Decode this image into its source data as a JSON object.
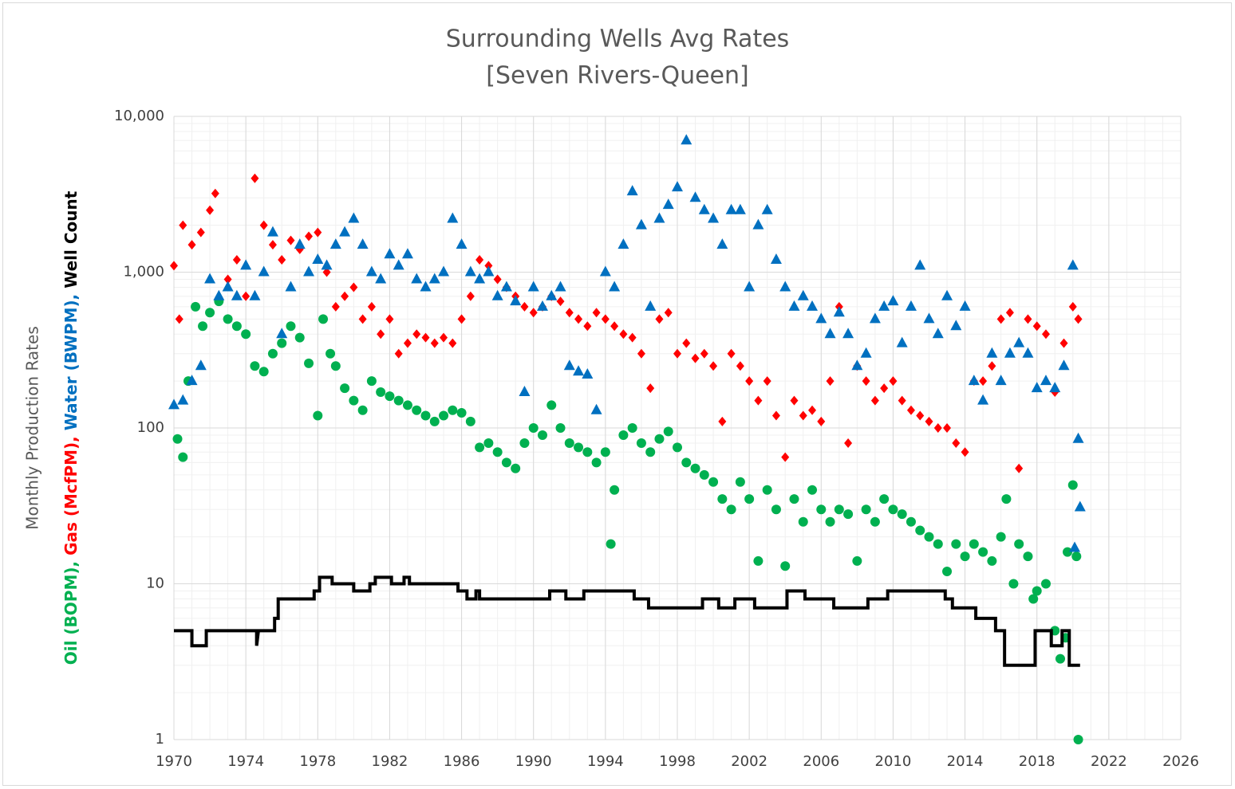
{
  "chart_data": {
    "type": "scatter",
    "title": "Surrounding Wells Avg Rates",
    "subtitle": "[Seven Rivers-Queen]",
    "ylabel": "Monthly Production Rates",
    "xlim": [
      1970,
      2026
    ],
    "xticks": [
      1970,
      1974,
      1978,
      1982,
      1986,
      1990,
      1994,
      1998,
      2002,
      2006,
      2010,
      2014,
      2018,
      2022,
      2026
    ],
    "ylim": [
      1,
      10000
    ],
    "yticks": [
      1,
      10,
      100,
      {
        "value": 1000,
        "label": "1,000"
      },
      {
        "value": 10000,
        "label": "10,000"
      }
    ],
    "log_y": true,
    "grid": true,
    "minor_grid": true,
    "series": [
      {
        "name": "Oil (BOPM),",
        "color": "#00b050",
        "marker": "circle",
        "x": [
          1970.2,
          1970.5,
          1970.8,
          1971.2,
          1971.6,
          1972,
          1972.5,
          1973,
          1973.5,
          1974,
          1974.5,
          1975,
          1975.5,
          1976,
          1976.5,
          1977,
          1977.5,
          1978,
          1978.3,
          1978.7,
          1979,
          1979.5,
          1980,
          1980.5,
          1981,
          1981.5,
          1982,
          1982.5,
          1983,
          1983.5,
          1984,
          1984.5,
          1985,
          1985.5,
          1986,
          1986.5,
          1987,
          1987.5,
          1988,
          1988.5,
          1989,
          1989.5,
          1990,
          1990.5,
          1991,
          1991.5,
          1992,
          1992.5,
          1993,
          1993.5,
          1994,
          1994.3,
          1994.5,
          1995,
          1995.5,
          1996,
          1996.5,
          1997,
          1997.5,
          1998,
          1998.5,
          1999,
          1999.5,
          2000,
          2000.5,
          2001,
          2001.5,
          2002,
          2002.5,
          2003,
          2003.5,
          2004,
          2004.5,
          2005,
          2005.5,
          2006,
          2006.5,
          2007,
          2007.5,
          2008,
          2008.5,
          2009,
          2009.5,
          2010,
          2010.5,
          2011,
          2011.5,
          2012,
          2012.5,
          2013,
          2013.5,
          2014,
          2014.5,
          2015,
          2015.5,
          2016,
          2016.3,
          2016.7,
          2017,
          2017.5,
          2017.8,
          2018,
          2018.5,
          2019,
          2019.3,
          2019.6,
          2019.7,
          2020,
          2020.2,
          2020.3
        ],
        "values": [
          85,
          65,
          200,
          600,
          450,
          550,
          650,
          500,
          450,
          400,
          250,
          230,
          300,
          350,
          450,
          380,
          260,
          120,
          500,
          300,
          250,
          180,
          150,
          130,
          200,
          170,
          160,
          150,
          140,
          130,
          120,
          110,
          120,
          130,
          125,
          110,
          75,
          80,
          70,
          60,
          55,
          80,
          100,
          90,
          140,
          100,
          80,
          75,
          70,
          60,
          70,
          18,
          40,
          90,
          100,
          80,
          70,
          85,
          95,
          75,
          60,
          55,
          50,
          45,
          35,
          30,
          45,
          35,
          14,
          40,
          30,
          13,
          35,
          25,
          40,
          30,
          25,
          30,
          28,
          14,
          30,
          25,
          35,
          30,
          28,
          25,
          22,
          20,
          18,
          12,
          18,
          15,
          18,
          16,
          14,
          20,
          35,
          10,
          18,
          15,
          8,
          9,
          10,
          5,
          3.3,
          4.5,
          16,
          43,
          15,
          1
        ]
      },
      {
        "name": "Gas (McfPM),",
        "color": "#ff0000",
        "marker": "diamond",
        "x": [
          1970,
          1970.3,
          1970.5,
          1971,
          1971.5,
          1972,
          1972.3,
          1973,
          1973.5,
          1974,
          1974.5,
          1975,
          1975.5,
          1976,
          1976.5,
          1977,
          1977.5,
          1978,
          1978.5,
          1979,
          1979.5,
          1980,
          1980.5,
          1981,
          1981.5,
          1982,
          1982.5,
          1983,
          1983.5,
          1984,
          1984.5,
          1985,
          1985.5,
          1986,
          1986.5,
          1987,
          1987.5,
          1988,
          1988.5,
          1989,
          1989.5,
          1990,
          1990.5,
          1991,
          1991.5,
          1992,
          1992.5,
          1993,
          1993.5,
          1994,
          1994.5,
          1995,
          1995.5,
          1996,
          1996.5,
          1997,
          1997.5,
          1998,
          1998.5,
          1999,
          1999.5,
          2000,
          2000.5,
          2001,
          2001.5,
          2002,
          2002.5,
          2003,
          2003.5,
          2004,
          2004.5,
          2005,
          2005.5,
          2006,
          2006.5,
          2007,
          2007.5,
          2008,
          2008.5,
          2009,
          2009.5,
          2010,
          2010.5,
          2011,
          2011.5,
          2012,
          2012.5,
          2013,
          2013.5,
          2014,
          2014.5,
          2015,
          2015.5,
          2016,
          2016.5,
          2017,
          2017.5,
          2018,
          2018.5,
          2019,
          2019.5,
          2020,
          2020.3
        ],
        "values": [
          1100,
          500,
          2000,
          1500,
          1800,
          2500,
          3200,
          900,
          1200,
          700,
          4000,
          2000,
          1500,
          1200,
          1600,
          1400,
          1700,
          1800,
          1000,
          600,
          700,
          800,
          500,
          600,
          400,
          500,
          300,
          350,
          400,
          380,
          350,
          380,
          350,
          500,
          700,
          1200,
          1100,
          900,
          800,
          700,
          600,
          550,
          600,
          700,
          650,
          550,
          500,
          450,
          550,
          500,
          450,
          400,
          380,
          300,
          180,
          500,
          550,
          300,
          350,
          280,
          300,
          250,
          110,
          300,
          250,
          200,
          150,
          200,
          120,
          65,
          150,
          120,
          130,
          110,
          200,
          600,
          80,
          250,
          200,
          150,
          180,
          200,
          150,
          130,
          120,
          110,
          100,
          100,
          80,
          70,
          200,
          200,
          250,
          500,
          550,
          55,
          500,
          450,
          400,
          170,
          350,
          600,
          500
        ]
      },
      {
        "name": "Water (BWPM),",
        "color": "#0070c0",
        "marker": "triangle",
        "x": [
          1970,
          1970.5,
          1971,
          1971.5,
          1972,
          1972.5,
          1973,
          1973.5,
          1974,
          1974.5,
          1975,
          1975.5,
          1976,
          1976.5,
          1977,
          1977.5,
          1978,
          1978.5,
          1979,
          1979.5,
          1980,
          1980.5,
          1981,
          1981.5,
          1982,
          1982.5,
          1983,
          1983.5,
          1984,
          1984.5,
          1985,
          1985.5,
          1986,
          1986.5,
          1987,
          1987.5,
          1988,
          1988.5,
          1989,
          1989.5,
          1990,
          1990.5,
          1991,
          1991.5,
          1992,
          1992.5,
          1993,
          1993.5,
          1994,
          1994.5,
          1995,
          1995.5,
          1996,
          1996.5,
          1997,
          1997.5,
          1998,
          1998.5,
          1999,
          1999.5,
          2000,
          2000.5,
          2001,
          2001.5,
          2002,
          2002.5,
          2003,
          2003.5,
          2004,
          2004.5,
          2005,
          2005.5,
          2006,
          2006.5,
          2007,
          2007.5,
          2008,
          2008.5,
          2009,
          2009.5,
          2010,
          2010.5,
          2011,
          2011.5,
          2012,
          2012.5,
          2013,
          2013.5,
          2014,
          2014.5,
          2015,
          2015.5,
          2016,
          2016.5,
          2017,
          2017.5,
          2018,
          2018.5,
          2019,
          2019.5,
          2020,
          2020.1,
          2020.3,
          2020.4
        ],
        "values": [
          140,
          150,
          200,
          250,
          900,
          700,
          800,
          700,
          1100,
          700,
          1000,
          1800,
          400,
          800,
          1500,
          1000,
          1200,
          1100,
          1500,
          1800,
          2200,
          1500,
          1000,
          900,
          1300,
          1100,
          1300,
          900,
          800,
          900,
          1000,
          2200,
          1500,
          1000,
          900,
          1000,
          700,
          800,
          650,
          170,
          800,
          600,
          700,
          800,
          250,
          230,
          220,
          130,
          1000,
          800,
          1500,
          3300,
          2000,
          600,
          2200,
          2700,
          3500,
          7000,
          3000,
          2500,
          2200,
          1500,
          2500,
          2500,
          800,
          2000,
          2500,
          1200,
          800,
          600,
          700,
          600,
          500,
          400,
          550,
          400,
          250,
          300,
          500,
          600,
          650,
          350,
          600,
          1100,
          500,
          400,
          700,
          450,
          600,
          200,
          150,
          300,
          200,
          300,
          350,
          300,
          180,
          200,
          180,
          250,
          1100,
          17,
          85,
          31
        ]
      },
      {
        "name": "Well Count",
        "color": "#000000",
        "marker": "line",
        "x": [
          1970,
          1971,
          1971,
          1971.8,
          1971.8,
          1974.6,
          1974.6,
          1974.7,
          1975.6,
          1975.6,
          1975.8,
          1975.8,
          1977.8,
          1977.8,
          1978.1,
          1978.1,
          1978.8,
          1978.8,
          1980,
          1980,
          1980.9,
          1980.9,
          1981.2,
          1981.2,
          1982.1,
          1982.1,
          1982.8,
          1982.8,
          1983.1,
          1983.1,
          1985.8,
          1985.8,
          1986.3,
          1986.3,
          1986.8,
          1986.8,
          1987,
          1987,
          1990.9,
          1990.9,
          1991.8,
          1991.8,
          1992.8,
          1992.8,
          1995.6,
          1995.6,
          1996.4,
          1996.4,
          1999.4,
          1999.4,
          2000.3,
          2000.3,
          2001.2,
          2001.2,
          2002.3,
          2002.3,
          2004.1,
          2004.1,
          2005.1,
          2005.1,
          2006.7,
          2006.7,
          2008.6,
          2008.6,
          2009.7,
          2009.7,
          2012.9,
          2012.9,
          2013.3,
          2013.3,
          2014.6,
          2014.6,
          2015.7,
          2015.7,
          2016.2,
          2016.2,
          2017.9,
          2017.9,
          2018.8,
          2018.8,
          2019.4,
          2019.4,
          2019.8,
          2019.8,
          2020.4
        ],
        "values": [
          5,
          5,
          4,
          4,
          5,
          5,
          4,
          5,
          5,
          6,
          6,
          8,
          8,
          9,
          9,
          11,
          11,
          10,
          10,
          9,
          9,
          10,
          10,
          11,
          11,
          10,
          10,
          11,
          11,
          10,
          10,
          9,
          9,
          8,
          8,
          9,
          9,
          8,
          8,
          9,
          9,
          8,
          8,
          9,
          9,
          8,
          8,
          7,
          7,
          8,
          8,
          7,
          7,
          8,
          8,
          7,
          7,
          9,
          9,
          8,
          8,
          7,
          7,
          8,
          8,
          9,
          9,
          8,
          8,
          7,
          7,
          6,
          6,
          5,
          5,
          3,
          3,
          5,
          5,
          4,
          4,
          5,
          5,
          3,
          3
        ]
      }
    ]
  }
}
